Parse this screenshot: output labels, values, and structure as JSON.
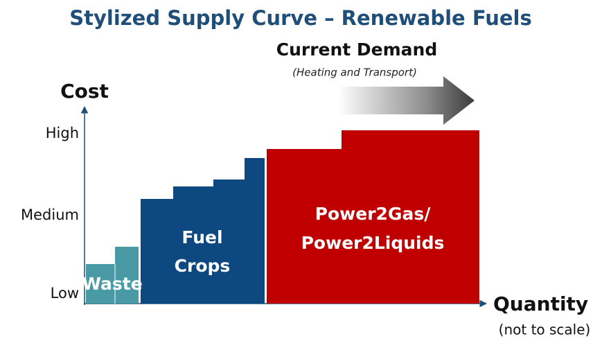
{
  "title": "Stylized Supply Curve – Renewable Fuels",
  "demand": {
    "title": "Current Demand",
    "subtitle": "(Heating and Transport)"
  },
  "axes": {
    "y": {
      "label": "Cost",
      "levels": [
        "High",
        "Medium",
        "Low"
      ]
    },
    "x": {
      "label": "Quantity",
      "note": "(not to scale)"
    }
  },
  "blocks": [
    {
      "lines": [
        "Waste"
      ]
    },
    {
      "lines": [
        "Fuel",
        "Crops"
      ]
    },
    {
      "lines": [
        "Power2Gas/",
        "Power2Liquids"
      ]
    }
  ]
}
